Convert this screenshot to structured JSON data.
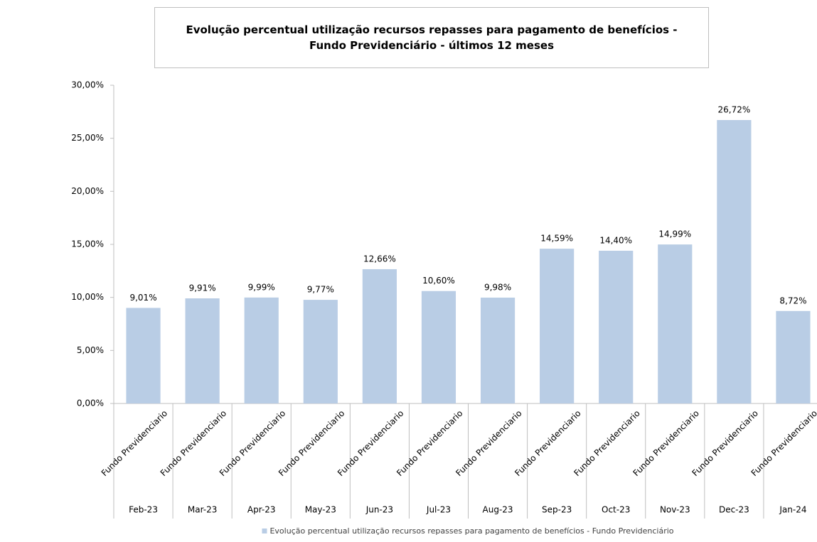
{
  "chart_data": {
    "type": "bar",
    "title": "Evolução percentual utilização recursos repasses para pagamento de benefícios - Fundo Previdenciário - últimos 12 meses",
    "categories": [
      "Feb-23",
      "Mar-23",
      "Apr-23",
      "May-23",
      "Jun-23",
      "Jul-23",
      "Aug-23",
      "Sep-23",
      "Oct-23",
      "Nov-23",
      "Dec-23",
      "Jan-24"
    ],
    "subcategories": [
      "Fundo Previdenciario",
      "Fundo Previdenciario",
      "Fundo Previdenciario",
      "Fundo Previdenciario",
      "Fundo Previdenciario",
      "Fundo Previdenciario",
      "Fundo Previdenciario",
      "Fundo Previdenciario",
      "Fundo Previdenciario",
      "Fundo Previdenciario",
      "Fundo Previdenciario",
      "Fundo Previdenciario"
    ],
    "series": [
      {
        "name": "Evolução percentual utilização recursos repasses para pagamento de benefícios - Fundo Previdenciário",
        "color": "#b9cde5",
        "values": [
          9.01,
          9.91,
          9.99,
          9.77,
          12.66,
          10.6,
          9.98,
          14.59,
          14.4,
          14.99,
          26.72,
          8.72
        ],
        "value_labels": [
          "9,01%",
          "9,91%",
          "9,99%",
          "9,77%",
          "12,66%",
          "10,60%",
          "9,98%",
          "14,59%",
          "14,40%",
          "14,99%",
          "26,72%",
          "8,72%"
        ]
      }
    ],
    "ylim": [
      0,
      30
    ],
    "yticks": [
      {
        "value": 0,
        "label": "0,00%"
      },
      {
        "value": 5,
        "label": "5,00%"
      },
      {
        "value": 10,
        "label": "10,00%"
      },
      {
        "value": 15,
        "label": "15,00%"
      },
      {
        "value": 20,
        "label": "20,00%"
      },
      {
        "value": 25,
        "label": "25,00%"
      },
      {
        "value": 30,
        "label": "30,00%"
      }
    ],
    "grid": false,
    "legend": "bottom"
  }
}
